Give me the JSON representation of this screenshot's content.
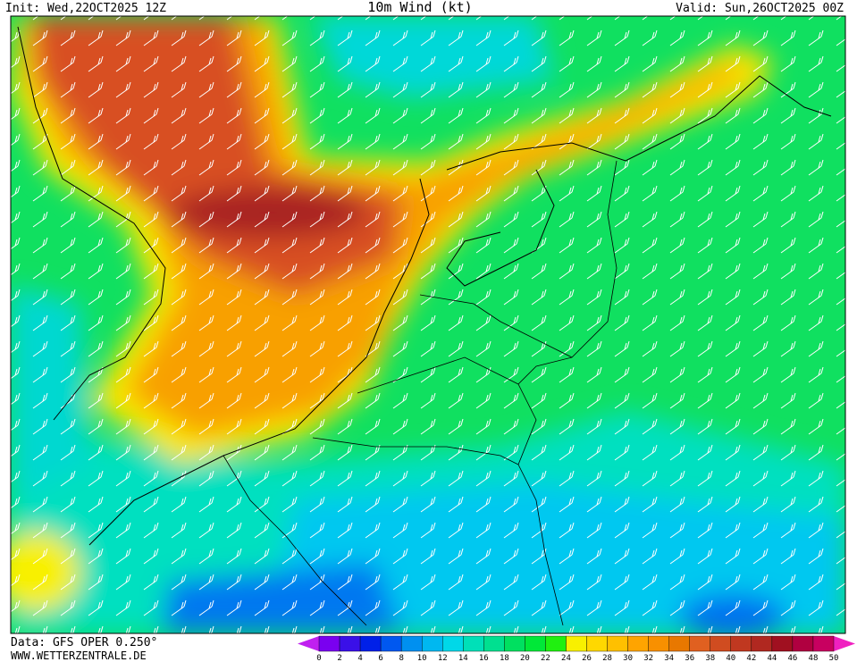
{
  "header": {
    "init": "Init: Wed,22OCT2025 12Z",
    "title": "10m Wind (kt)",
    "valid": "Valid: Sun,26OCT2025 00Z"
  },
  "footer": {
    "source": "Data: GFS OPER 0.250°",
    "site": "WWW.WETTERZENTRALE.DE"
  },
  "legend": {
    "ticks": [
      0,
      2,
      4,
      6,
      8,
      10,
      12,
      14,
      16,
      18,
      20,
      22,
      24,
      26,
      28,
      30,
      32,
      34,
      36,
      38,
      40,
      42,
      44,
      46,
      48,
      50
    ],
    "colors": [
      "#7a00f0",
      "#3a10e8",
      "#0020e8",
      "#0058f0",
      "#0090f0",
      "#00b8f0",
      "#00d8e8",
      "#00e0b8",
      "#00e090",
      "#00e060",
      "#00e838",
      "#20f010",
      "#f8f000",
      "#ffd800",
      "#ffc000",
      "#ffa400",
      "#f89000",
      "#e87800",
      "#e06020",
      "#d04c20",
      "#c03820",
      "#b02820",
      "#a01020",
      "#b00040",
      "#c80060"
    ],
    "low_color": "#c020f0",
    "high_color": "#f020c0"
  }
}
